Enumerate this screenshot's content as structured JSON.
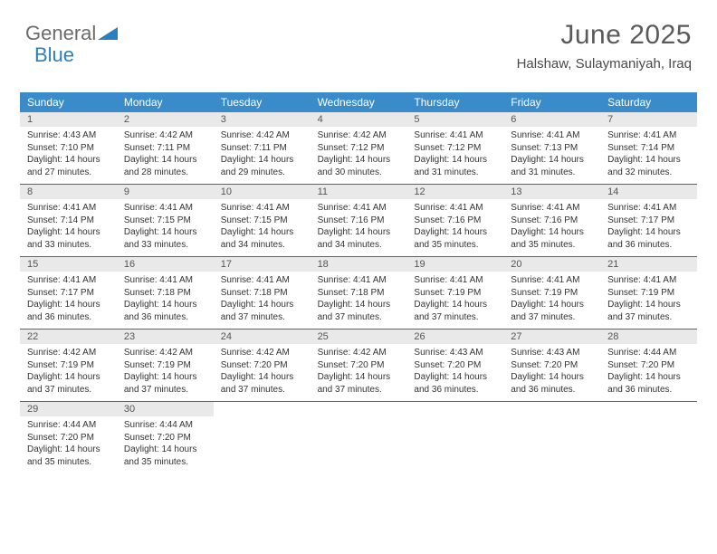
{
  "logo": {
    "text1": "General",
    "text2": "Blue"
  },
  "title": "June 2025",
  "location": "Halshaw, Sulaymaniyah, Iraq",
  "colors": {
    "header_bg": "#3a8bc9",
    "header_text": "#ffffff",
    "daynum_bg": "#e9e9e9",
    "week_border": "#2f6fa3",
    "body_text": "#333333",
    "title_text": "#5a5a5a"
  },
  "weekdays": [
    "Sunday",
    "Monday",
    "Tuesday",
    "Wednesday",
    "Thursday",
    "Friday",
    "Saturday"
  ],
  "weeks": [
    [
      {
        "n": "1",
        "sr": "4:43 AM",
        "ss": "7:10 PM",
        "dl": "14 hours and 27 minutes."
      },
      {
        "n": "2",
        "sr": "4:42 AM",
        "ss": "7:11 PM",
        "dl": "14 hours and 28 minutes."
      },
      {
        "n": "3",
        "sr": "4:42 AM",
        "ss": "7:11 PM",
        "dl": "14 hours and 29 minutes."
      },
      {
        "n": "4",
        "sr": "4:42 AM",
        "ss": "7:12 PM",
        "dl": "14 hours and 30 minutes."
      },
      {
        "n": "5",
        "sr": "4:41 AM",
        "ss": "7:12 PM",
        "dl": "14 hours and 31 minutes."
      },
      {
        "n": "6",
        "sr": "4:41 AM",
        "ss": "7:13 PM",
        "dl": "14 hours and 31 minutes."
      },
      {
        "n": "7",
        "sr": "4:41 AM",
        "ss": "7:14 PM",
        "dl": "14 hours and 32 minutes."
      }
    ],
    [
      {
        "n": "8",
        "sr": "4:41 AM",
        "ss": "7:14 PM",
        "dl": "14 hours and 33 minutes."
      },
      {
        "n": "9",
        "sr": "4:41 AM",
        "ss": "7:15 PM",
        "dl": "14 hours and 33 minutes."
      },
      {
        "n": "10",
        "sr": "4:41 AM",
        "ss": "7:15 PM",
        "dl": "14 hours and 34 minutes."
      },
      {
        "n": "11",
        "sr": "4:41 AM",
        "ss": "7:16 PM",
        "dl": "14 hours and 34 minutes."
      },
      {
        "n": "12",
        "sr": "4:41 AM",
        "ss": "7:16 PM",
        "dl": "14 hours and 35 minutes."
      },
      {
        "n": "13",
        "sr": "4:41 AM",
        "ss": "7:16 PM",
        "dl": "14 hours and 35 minutes."
      },
      {
        "n": "14",
        "sr": "4:41 AM",
        "ss": "7:17 PM",
        "dl": "14 hours and 36 minutes."
      }
    ],
    [
      {
        "n": "15",
        "sr": "4:41 AM",
        "ss": "7:17 PM",
        "dl": "14 hours and 36 minutes."
      },
      {
        "n": "16",
        "sr": "4:41 AM",
        "ss": "7:18 PM",
        "dl": "14 hours and 36 minutes."
      },
      {
        "n": "17",
        "sr": "4:41 AM",
        "ss": "7:18 PM",
        "dl": "14 hours and 37 minutes."
      },
      {
        "n": "18",
        "sr": "4:41 AM",
        "ss": "7:18 PM",
        "dl": "14 hours and 37 minutes."
      },
      {
        "n": "19",
        "sr": "4:41 AM",
        "ss": "7:19 PM",
        "dl": "14 hours and 37 minutes."
      },
      {
        "n": "20",
        "sr": "4:41 AM",
        "ss": "7:19 PM",
        "dl": "14 hours and 37 minutes."
      },
      {
        "n": "21",
        "sr": "4:41 AM",
        "ss": "7:19 PM",
        "dl": "14 hours and 37 minutes."
      }
    ],
    [
      {
        "n": "22",
        "sr": "4:42 AM",
        "ss": "7:19 PM",
        "dl": "14 hours and 37 minutes."
      },
      {
        "n": "23",
        "sr": "4:42 AM",
        "ss": "7:19 PM",
        "dl": "14 hours and 37 minutes."
      },
      {
        "n": "24",
        "sr": "4:42 AM",
        "ss": "7:20 PM",
        "dl": "14 hours and 37 minutes."
      },
      {
        "n": "25",
        "sr": "4:42 AM",
        "ss": "7:20 PM",
        "dl": "14 hours and 37 minutes."
      },
      {
        "n": "26",
        "sr": "4:43 AM",
        "ss": "7:20 PM",
        "dl": "14 hours and 36 minutes."
      },
      {
        "n": "27",
        "sr": "4:43 AM",
        "ss": "7:20 PM",
        "dl": "14 hours and 36 minutes."
      },
      {
        "n": "28",
        "sr": "4:44 AM",
        "ss": "7:20 PM",
        "dl": "14 hours and 36 minutes."
      }
    ],
    [
      {
        "n": "29",
        "sr": "4:44 AM",
        "ss": "7:20 PM",
        "dl": "14 hours and 35 minutes."
      },
      {
        "n": "30",
        "sr": "4:44 AM",
        "ss": "7:20 PM",
        "dl": "14 hours and 35 minutes."
      },
      null,
      null,
      null,
      null,
      null
    ]
  ],
  "labels": {
    "sunrise": "Sunrise:",
    "sunset": "Sunset:",
    "daylight": "Daylight:"
  }
}
